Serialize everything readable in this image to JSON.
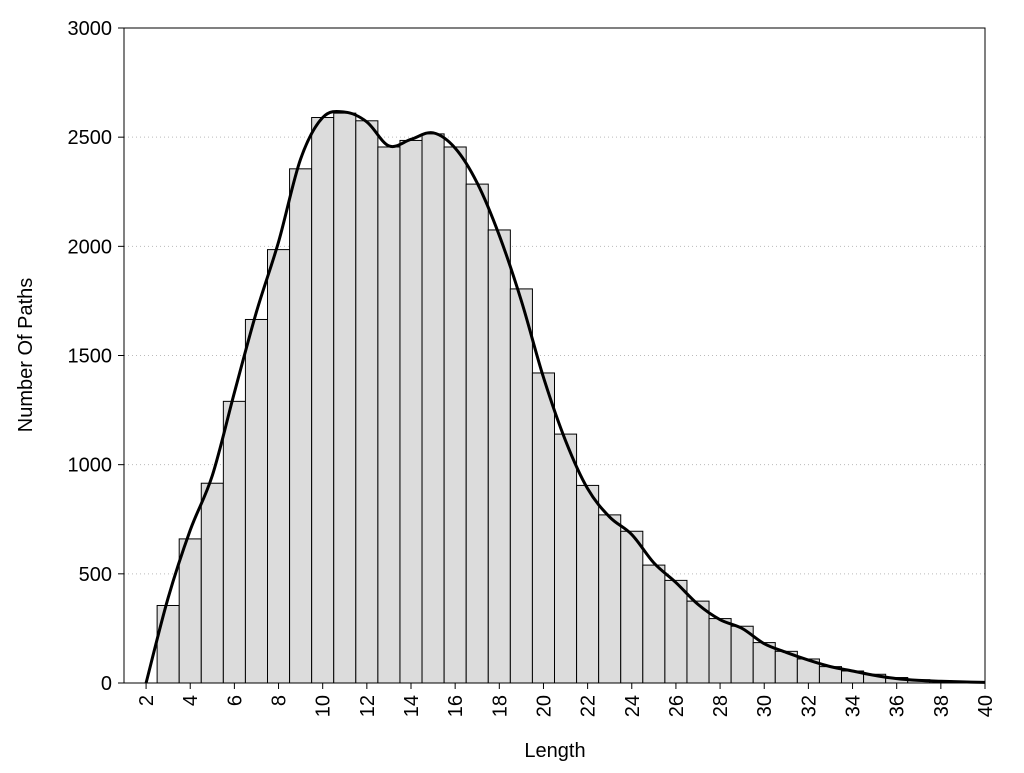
{
  "chart_data": {
    "type": "histogram",
    "xlabel": "Length",
    "ylabel": "Number Of Paths",
    "bins": [
      2.5,
      3.5,
      4.5,
      5.5,
      6.5,
      7.5,
      8.5,
      9.5,
      10.5,
      11.5,
      12.5,
      13.5,
      14.5,
      15.5,
      16.5,
      17.5,
      18.5,
      19.5,
      20.5,
      21.5,
      22.5,
      23.5,
      24.5,
      25.5,
      26.5,
      27.5,
      28.5,
      29.5,
      30.5,
      31.5,
      32.5,
      33.5,
      34.5,
      35.5,
      36.5,
      37.5,
      38.5,
      39.5
    ],
    "values": [
      355,
      660,
      915,
      1290,
      1665,
      1985,
      2355,
      2590,
      2610,
      2575,
      2455,
      2485,
      2515,
      2455,
      2285,
      2075,
      1805,
      1420,
      1140,
      905,
      770,
      695,
      540,
      470,
      375,
      295,
      260,
      185,
      145,
      110,
      75,
      55,
      40,
      25,
      15,
      10,
      5
    ],
    "color": "#dcdcdc",
    "curve": {
      "color": "#000000",
      "x": [
        2,
        3,
        4,
        5,
        6,
        7,
        8,
        9,
        10,
        11,
        12,
        13,
        14,
        15,
        16,
        17,
        18,
        19,
        20,
        21,
        22,
        23,
        24,
        25,
        26,
        27,
        28,
        29,
        30,
        31,
        32,
        33,
        34,
        35,
        36,
        37,
        38,
        39,
        40
      ],
      "values": [
        0,
        390,
        700,
        950,
        1330,
        1700,
        2020,
        2400,
        2590,
        2615,
        2570,
        2460,
        2490,
        2520,
        2450,
        2290,
        2050,
        1750,
        1400,
        1110,
        890,
        760,
        680,
        550,
        460,
        360,
        290,
        250,
        180,
        140,
        105,
        75,
        55,
        35,
        20,
        12,
        8,
        5,
        3
      ]
    },
    "xlim": [
      1,
      40
    ],
    "ylim": [
      0,
      3000
    ],
    "xticks": [
      2,
      4,
      6,
      8,
      10,
      12,
      14,
      16,
      18,
      20,
      22,
      24,
      26,
      28,
      30,
      32,
      34,
      36,
      38,
      40
    ],
    "yticks": [
      0,
      500,
      1000,
      1500,
      2000,
      2500,
      3000
    ],
    "grid": true
  }
}
